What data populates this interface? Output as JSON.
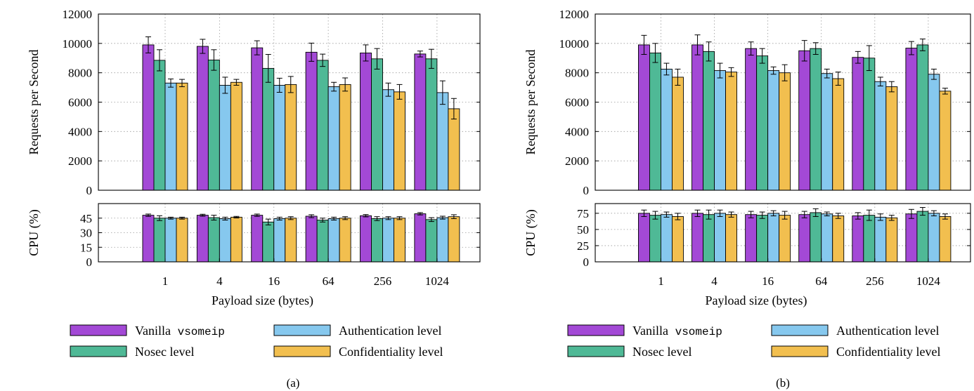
{
  "chart_data": [
    {
      "type": "bar",
      "panel_label": "(a)",
      "categories": [
        "1",
        "4",
        "16",
        "64",
        "256",
        "1024"
      ],
      "xlabel": "Payload size (bytes)",
      "top": {
        "ylabel": "Requests per Second",
        "ylim": [
          0,
          12000
        ],
        "yticks": [
          0,
          2000,
          4000,
          6000,
          8000,
          10000,
          12000
        ],
        "grid": true,
        "series": [
          {
            "name": "Vanilla vsomeip",
            "values": [
              9900,
              9800,
              9700,
              9400,
              9350,
              9280
            ],
            "err": [
              550,
              480,
              480,
              620,
              550,
              200
            ]
          },
          {
            "name": "Nosec level",
            "values": [
              8850,
              8870,
              8300,
              8850,
              8950,
              8950
            ],
            "err": [
              720,
              700,
              950,
              420,
              700,
              650
            ]
          },
          {
            "name": "Authentication level",
            "values": [
              7300,
              7150,
              7150,
              7050,
              6850,
              6650
            ],
            "err": [
              280,
              550,
              480,
              300,
              450,
              800
            ]
          },
          {
            "name": "Confidentiality level",
            "values": [
              7300,
              7350,
              7200,
              7200,
              6700,
              5550
            ],
            "err": [
              250,
              200,
              550,
              450,
              500,
              700
            ]
          }
        ]
      },
      "bottom": {
        "ylabel": "CPU (%)",
        "ylim": [
          0,
          60
        ],
        "yticks": [
          0,
          15,
          30,
          45
        ],
        "grid": true,
        "series": [
          {
            "name": "Vanilla vsomeip",
            "values": [
              48,
              48,
              48,
              47,
              47.5,
              49.5
            ],
            "err": [
              1.2,
              1,
              1.2,
              1.5,
              1.2,
              1.2
            ]
          },
          {
            "name": "Nosec level",
            "values": [
              45,
              45.5,
              41,
              43,
              44.5,
              43.5
            ],
            "err": [
              2.5,
              2.5,
              3,
              2,
              2,
              2
            ]
          },
          {
            "name": "Authentication level",
            "values": [
              45,
              44.5,
              44.5,
              44.5,
              45,
              45.5
            ],
            "err": [
              1,
              1.5,
              1.5,
              1.5,
              1.5,
              1.5
            ]
          },
          {
            "name": "Confidentiality level",
            "values": [
              45,
              46,
              45,
              45,
              45,
              46.5
            ],
            "err": [
              1,
              0.8,
              1.5,
              1.5,
              1.5,
              2
            ]
          }
        ]
      }
    },
    {
      "type": "bar",
      "panel_label": "(b)",
      "categories": [
        "1",
        "4",
        "16",
        "64",
        "256",
        "1024"
      ],
      "xlabel": "Payload size (bytes)",
      "top": {
        "ylabel": "Requests per Second",
        "ylim": [
          0,
          12000
        ],
        "yticks": [
          0,
          2000,
          4000,
          6000,
          8000,
          10000,
          12000
        ],
        "grid": true,
        "series": [
          {
            "name": "Vanilla vsomeip",
            "values": [
              9900,
              9900,
              9650,
              9500,
              9050,
              9680
            ],
            "err": [
              650,
              680,
              450,
              700,
              400,
              450
            ]
          },
          {
            "name": "Nosec level",
            "values": [
              9350,
              9450,
              9150,
              9650,
              9000,
              9900
            ],
            "err": [
              650,
              650,
              500,
              400,
              850,
              400
            ]
          },
          {
            "name": "Authentication level",
            "values": [
              8250,
              8150,
              8150,
              7950,
              7400,
              7900
            ],
            "err": [
              400,
              500,
              250,
              300,
              300,
              350
            ]
          },
          {
            "name": "Confidentiality level",
            "values": [
              7700,
              8050,
              8000,
              7600,
              7050,
              6750
            ],
            "err": [
              550,
              300,
              550,
              450,
              350,
              200
            ]
          }
        ]
      },
      "bottom": {
        "ylabel": "CPU (%)",
        "ylim": [
          0,
          90
        ],
        "yticks": [
          0,
          25,
          50,
          75
        ],
        "grid": true,
        "series": [
          {
            "name": "Vanilla vsomeip",
            "values": [
              75,
              75,
              73,
              73,
              71,
              74
            ],
            "err": [
              5,
              5,
              5,
              5,
              5,
              7
            ]
          },
          {
            "name": "Nosec level",
            "values": [
              72,
              73,
              72,
              76,
              72,
              78
            ],
            "err": [
              6,
              7,
              5,
              6,
              8,
              6
            ]
          },
          {
            "name": "Authentication level",
            "values": [
              73,
              75,
              75,
              74,
              69,
              75
            ],
            "err": [
              4,
              5,
              4,
              3,
              5,
              4
            ]
          },
          {
            "name": "Confidentiality level",
            "values": [
              70,
              73,
              72,
              71,
              68,
              70
            ],
            "err": [
              5,
              4,
              6,
              4,
              4,
              4
            ]
          }
        ]
      }
    }
  ],
  "legend": [
    {
      "name": "Vanilla vsomeip",
      "text": "Vanilla",
      "mono": "vsomeip",
      "color": "#a349d6"
    },
    {
      "name": "Nosec level",
      "text": "Nosec level",
      "mono": "",
      "color": "#4fb996"
    },
    {
      "name": "Authentication level",
      "text": "Authentication level",
      "mono": "",
      "color": "#86c8ee"
    },
    {
      "name": "Confidentiality level",
      "text": "Confidentiality level",
      "mono": "",
      "color": "#f2bf4f"
    }
  ],
  "colors": [
    "#a349d6",
    "#4fb996",
    "#86c8ee",
    "#f2bf4f"
  ]
}
